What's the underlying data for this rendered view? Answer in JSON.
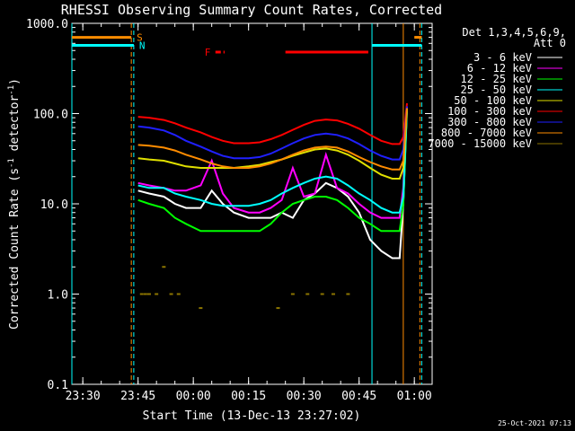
{
  "chart_data": {
    "type": "line",
    "title": "RHESSI Observing Summary Count Rates, Corrected",
    "xlabel": "Start Time (13-Dec-13 23:27:02)",
    "ylabel_parts": {
      "main": "Corrected Count Rate (s",
      "exp1": "-1",
      "mid": " detector",
      "exp2": "-1",
      "end": ")"
    },
    "y_scale": "log",
    "ylim": [
      0.1,
      1000
    ],
    "xlim": [
      "23:27:02",
      "01:04:50"
    ],
    "y_ticks": [
      "0.1",
      "1.0",
      "10.0",
      "100.0",
      "1000.0"
    ],
    "x_ticks": [
      "23:30",
      "23:45",
      "00:00",
      "00:15",
      "00:30",
      "00:45",
      "01:00"
    ],
    "legend": {
      "header1": "Det 1,3,4,5,6,9,",
      "header2": "Att 0",
      "entries": [
        {
          "label": "3 - 6 keV",
          "color": "#ffffff"
        },
        {
          "label": "6 - 12 keV",
          "color": "#ff00ff"
        },
        {
          "label": "12 - 25 keV",
          "color": "#00ff00"
        },
        {
          "label": "25 - 50 keV",
          "color": "#00ffff"
        },
        {
          "label": "50 - 100 keV",
          "color": "#e0e000"
        },
        {
          "label": "100 - 300 keV",
          "color": "#ff0000"
        },
        {
          "label": "300 - 800 keV",
          "color": "#2020ff"
        },
        {
          "label": "800 - 7000 keV",
          "color": "#ff8c00"
        },
        {
          "label": "7000 - 15000 keV",
          "color": "#8b7500"
        }
      ]
    },
    "series": [
      {
        "name": "3 - 6 keV",
        "color": "#ffffff",
        "x": [
          "23:45",
          "23:48",
          "23:52",
          "23:55",
          "23:58",
          "00:02",
          "00:05",
          "00:08",
          "00:11",
          "00:15",
          "00:18",
          "00:21",
          "00:24",
          "00:27",
          "00:30",
          "00:33",
          "00:36",
          "00:39",
          "00:42",
          "00:45",
          "00:48",
          "00:51",
          "00:54",
          "00:56",
          "00:57",
          "00:58"
        ],
        "y": [
          14,
          13,
          12,
          10,
          9,
          9,
          14,
          10,
          8,
          7,
          7,
          7,
          8,
          7,
          11,
          13,
          17,
          15,
          12,
          8,
          4,
          3,
          2.5,
          2.5,
          10,
          120
        ]
      },
      {
        "name": "6 - 12 keV",
        "color": "#ff00ff",
        "x": [
          "23:45",
          "23:48",
          "23:52",
          "23:55",
          "23:58",
          "00:02",
          "00:05",
          "00:08",
          "00:11",
          "00:15",
          "00:18",
          "00:21",
          "00:24",
          "00:27",
          "00:30",
          "00:33",
          "00:36",
          "00:39",
          "00:42",
          "00:45",
          "00:48",
          "00:51",
          "00:54",
          "00:56",
          "00:57",
          "00:58"
        ],
        "y": [
          17,
          16,
          15,
          14,
          14,
          16,
          30,
          13,
          9,
          8,
          8,
          9,
          11,
          25,
          12,
          13,
          35,
          15,
          13,
          10,
          8,
          7,
          7,
          7,
          15,
          120
        ]
      },
      {
        "name": "12 - 25 keV",
        "color": "#00ff00",
        "x": [
          "23:45",
          "23:48",
          "23:52",
          "23:55",
          "23:58",
          "00:02",
          "00:05",
          "00:08",
          "00:11",
          "00:15",
          "00:18",
          "00:21",
          "00:24",
          "00:27",
          "00:30",
          "00:33",
          "00:36",
          "00:39",
          "00:42",
          "00:45",
          "00:48",
          "00:51",
          "00:54",
          "00:56",
          "00:57",
          "00:58"
        ],
        "y": [
          11,
          10,
          9,
          7,
          6,
          5,
          5,
          5,
          5,
          5,
          5,
          6,
          8,
          10,
          11,
          12,
          12,
          11,
          9,
          7,
          6,
          5,
          5,
          5,
          10,
          110
        ]
      },
      {
        "name": "25 - 50 keV",
        "color": "#00ffff",
        "x": [
          "23:45",
          "23:48",
          "23:52",
          "23:55",
          "23:58",
          "00:02",
          "00:05",
          "00:08",
          "00:11",
          "00:15",
          "00:18",
          "00:21",
          "00:24",
          "00:27",
          "00:30",
          "00:33",
          "00:36",
          "00:39",
          "00:42",
          "00:45",
          "00:48",
          "00:51",
          "00:54",
          "00:56",
          "00:57",
          "00:58"
        ],
        "y": [
          16,
          15,
          15,
          13,
          12,
          11,
          10,
          9.5,
          9.5,
          9.5,
          10,
          11,
          13,
          15,
          17,
          19,
          20,
          19,
          16,
          13,
          11,
          9,
          8,
          8,
          12,
          115
        ]
      },
      {
        "name": "50 - 100 keV",
        "color": "#e0e000",
        "x": [
          "23:45",
          "23:48",
          "23:52",
          "23:55",
          "23:58",
          "00:02",
          "00:05",
          "00:08",
          "00:11",
          "00:15",
          "00:18",
          "00:21",
          "00:24",
          "00:27",
          "00:30",
          "00:33",
          "00:36",
          "00:39",
          "00:42",
          "00:45",
          "00:48",
          "00:51",
          "00:54",
          "00:56",
          "00:57",
          "00:58"
        ],
        "y": [
          32,
          31,
          30,
          28,
          26,
          25,
          25,
          25,
          25,
          26,
          27,
          29,
          31,
          34,
          37,
          40,
          41,
          39,
          35,
          30,
          25,
          21,
          19,
          19,
          25,
          115
        ]
      },
      {
        "name": "100 - 300 keV",
        "color": "#ff0000",
        "x": [
          "23:45",
          "23:48",
          "23:52",
          "23:55",
          "23:58",
          "00:02",
          "00:05",
          "00:08",
          "00:11",
          "00:15",
          "00:18",
          "00:21",
          "00:24",
          "00:27",
          "00:30",
          "00:33",
          "00:36",
          "00:39",
          "00:42",
          "00:45",
          "00:48",
          "00:51",
          "00:54",
          "00:56",
          "00:57",
          "00:58"
        ],
        "y": [
          92,
          90,
          85,
          78,
          70,
          62,
          55,
          50,
          47,
          47,
          48,
          52,
          58,
          66,
          75,
          83,
          86,
          84,
          77,
          68,
          58,
          50,
          46,
          46,
          55,
          130
        ]
      },
      {
        "name": "300 - 800 keV",
        "color": "#2020ff",
        "x": [
          "23:45",
          "23:48",
          "23:52",
          "23:55",
          "23:58",
          "00:02",
          "00:05",
          "00:08",
          "00:11",
          "00:15",
          "00:18",
          "00:21",
          "00:24",
          "00:27",
          "00:30",
          "00:33",
          "00:36",
          "00:39",
          "00:42",
          "00:45",
          "00:48",
          "00:51",
          "00:54",
          "00:56",
          "00:57",
          "00:58"
        ],
        "y": [
          72,
          70,
          65,
          58,
          50,
          43,
          38,
          34,
          32,
          32,
          33,
          36,
          41,
          47,
          53,
          58,
          60,
          58,
          53,
          46,
          39,
          34,
          31,
          31,
          40,
          120
        ]
      },
      {
        "name": "800 - 7000 keV",
        "color": "#ff8c00",
        "x": [
          "23:45",
          "23:48",
          "23:52",
          "23:55",
          "23:58",
          "00:02",
          "00:05",
          "00:08",
          "00:11",
          "00:15",
          "00:18",
          "00:21",
          "00:24",
          "00:27",
          "00:30",
          "00:33",
          "00:36",
          "00:39",
          "00:42",
          "00:45",
          "00:48",
          "00:51",
          "00:54",
          "00:56",
          "00:57",
          "00:58"
        ],
        "y": [
          45,
          44,
          42,
          39,
          35,
          31,
          28,
          26,
          25,
          25,
          26,
          28,
          31,
          35,
          39,
          42,
          43,
          42,
          38,
          33,
          29,
          26,
          24,
          24,
          30,
          115
        ]
      },
      {
        "name": "7000 - 15000 keV",
        "color": "#8b7500",
        "x": [
          "23:46",
          "23:47",
          "23:48",
          "23:50",
          "23:52",
          "23:54",
          "23:56",
          "00:02",
          "00:23",
          "00:27",
          "00:31",
          "00:35",
          "00:38",
          "00:42"
        ],
        "y": [
          1.0,
          1.0,
          1.0,
          1.0,
          2.0,
          1.0,
          1.0,
          0.7,
          0.7,
          1.0,
          1.0,
          1.0,
          1.0,
          1.0
        ]
      }
    ],
    "vertical_lines": [
      {
        "time": "23:27:02",
        "color": "#00ffff",
        "style": "solid"
      },
      {
        "time": "23:43:10",
        "color": "#ff8c00",
        "style": "dashed"
      },
      {
        "time": "23:43:50",
        "color": "#00ffff",
        "style": "dashed"
      },
      {
        "time": "00:48:30",
        "color": "#00ffff",
        "style": "solid"
      },
      {
        "time": "00:57:00",
        "color": "#ff8c00",
        "style": "solid"
      },
      {
        "time": "01:01:30",
        "color": "#ff8c00",
        "style": "dashed"
      },
      {
        "time": "01:02:00",
        "color": "#00ffff",
        "style": "dashed"
      }
    ],
    "flag_bars": [
      {
        "label": "S",
        "color": "#ff8c00",
        "level": 700,
        "segments": [
          [
            "23:27:02",
            "23:43:10"
          ],
          [
            "01:00:00",
            "01:02:00"
          ]
        ]
      },
      {
        "label": "N",
        "color": "#00ffff",
        "level": 570,
        "segments": [
          [
            "23:27:02",
            "23:43:50"
          ],
          [
            "00:48:30",
            "01:02:00"
          ]
        ]
      },
      {
        "label": "F",
        "color": "#ff0000",
        "level": 480,
        "segments": [
          [
            "00:06:00",
            "00:08:30"
          ],
          [
            "00:25:00",
            "00:47:30"
          ]
        ]
      }
    ]
  },
  "timestamp": "25-Oct-2021 07:13"
}
